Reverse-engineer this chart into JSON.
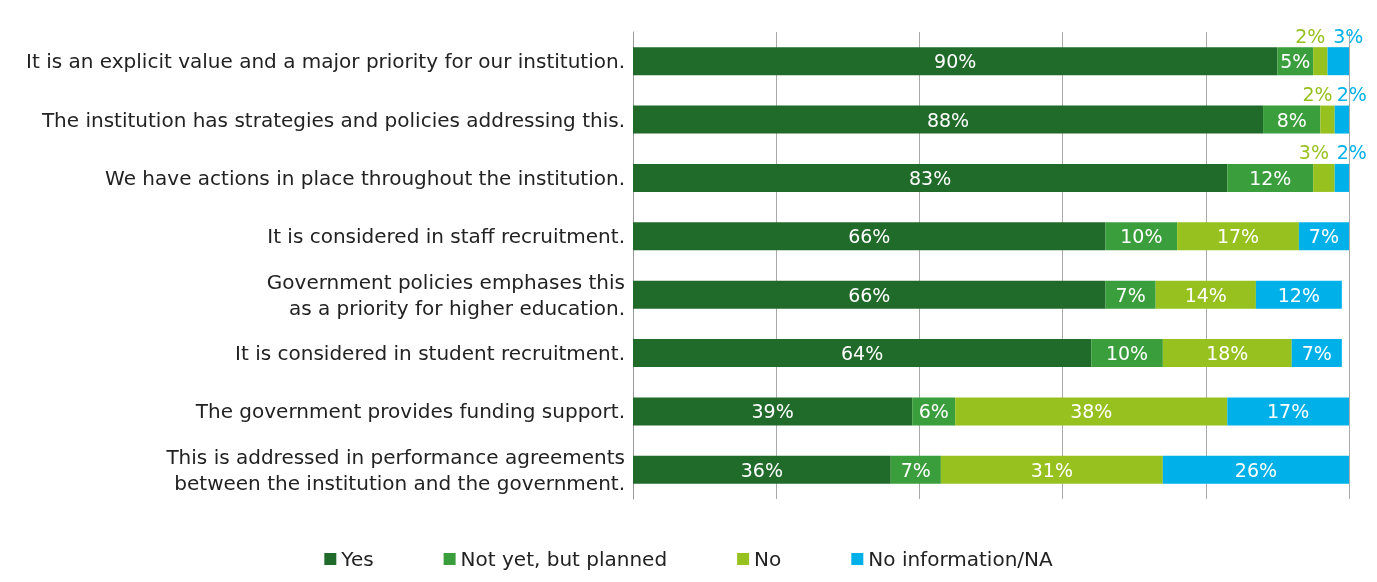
{
  "chart_data": {
    "type": "bar",
    "orientation": "horizontal",
    "stacked": true,
    "legend": "bottom",
    "grid": "x",
    "tick_labels": "y",
    "categories": [
      "It is an explicit value and a major priority for our institution.",
      "The institution has strategies and policies addressing this.",
      "We have actions in place throughout the institution.",
      "It is considered in staff recruitment.",
      "Government policies emphases this\nas a priority for higher education.",
      "It is considered in student recruitment.",
      "The government provides funding support.",
      "This is addressed in performance agreements\nbetween the institution and the government."
    ],
    "series": [
      {
        "name": "Yes",
        "color": "#216b2a",
        "values": [
          90,
          88,
          83,
          66,
          66,
          64,
          39,
          36
        ],
        "value_labels": [
          "90%",
          "88%",
          "83%",
          "66%",
          "66%",
          "64%",
          "39%",
          "36%"
        ]
      },
      {
        "name": "Not yet, but planned",
        "color": "#3a9e3c",
        "values": [
          5,
          8,
          12,
          10,
          7,
          10,
          6,
          7
        ],
        "value_labels": [
          "5%",
          "8%",
          "12%",
          "10%",
          "7%",
          "10%",
          "6%",
          "7%"
        ]
      },
      {
        "name": "No",
        "color": "#97c11f",
        "values": [
          2,
          2,
          3,
          17,
          14,
          18,
          38,
          31
        ],
        "value_labels": [
          "2%",
          "2%",
          "3%",
          "17%",
          "14%",
          "18%",
          "38%",
          "31%"
        ]
      },
      {
        "name": "No information/NA",
        "color": "#00b1e9",
        "values": [
          3,
          2,
          2,
          7,
          12,
          7,
          17,
          26
        ],
        "value_labels": [
          "3%",
          "2%",
          "2%",
          "7%",
          "12%",
          "7%",
          "17%",
          "26%"
        ]
      }
    ]
  }
}
